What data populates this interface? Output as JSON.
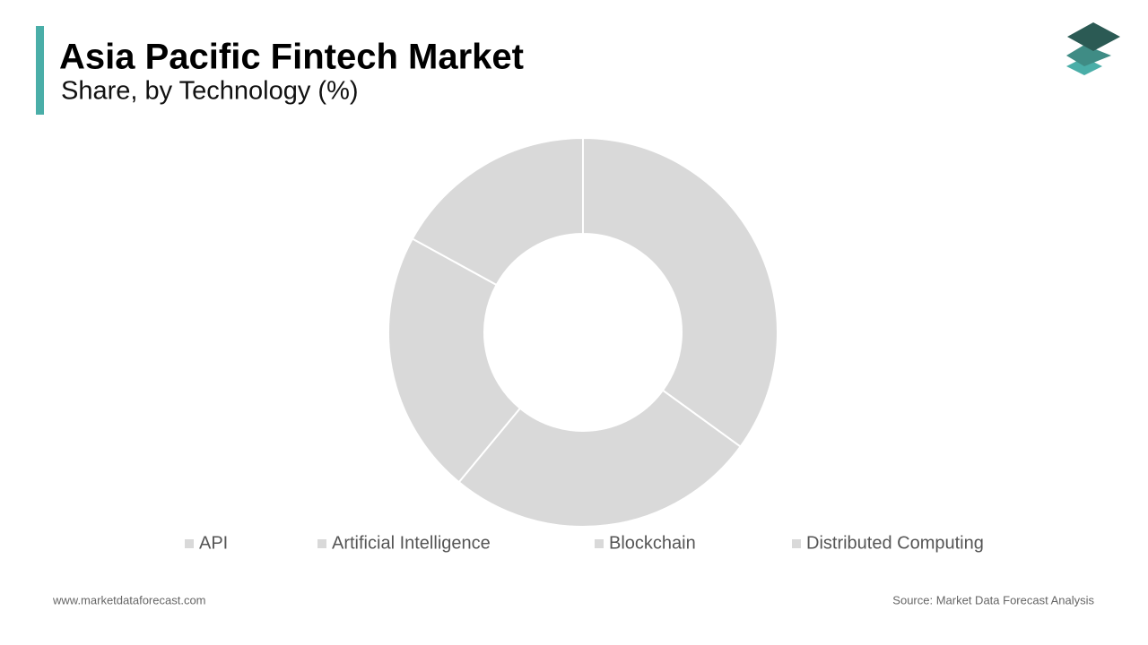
{
  "chart_data": {
    "type": "donut",
    "title": "Asia Pacific Fintech Market",
    "subtitle": "Share, by Technology (%)",
    "categories": [
      "API",
      "Artificial Intelligence",
      "Blockchain",
      "Distributed Computing"
    ],
    "values": [
      35,
      26,
      22,
      17
    ],
    "colors": [
      "#d9d9d9",
      "#d9d9d9",
      "#d9d9d9",
      "#d9d9d9"
    ],
    "legend": "bottom"
  },
  "footer": {
    "website": "www.marketdataforecast.com",
    "source": "Source: Market Data Forecast Analysis"
  }
}
